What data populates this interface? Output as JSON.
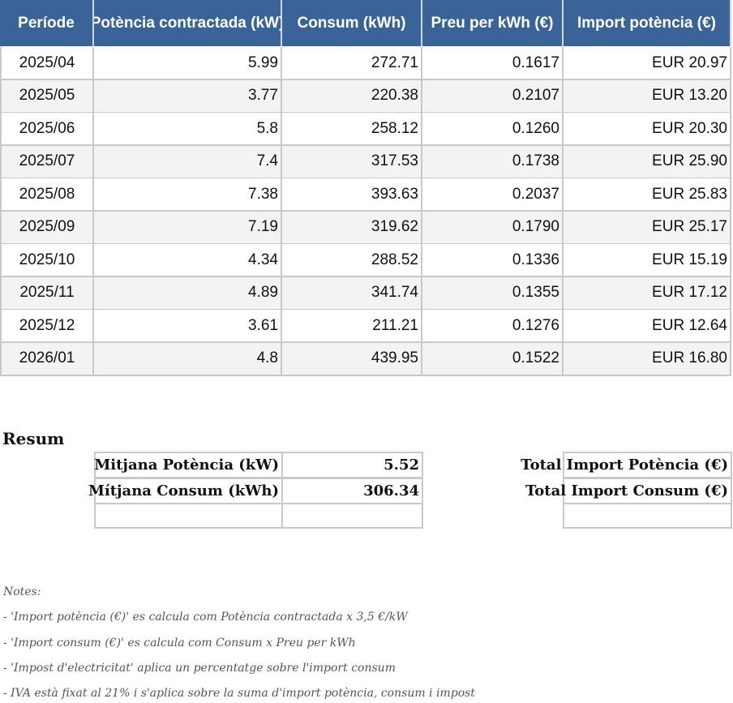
{
  "table": {
    "headers": [
      "Període",
      "Potència contractada (kW)",
      "Consum (kWh)",
      "Preu per kWh (€)",
      "Import potència (€)"
    ],
    "rows": [
      [
        "2025/04",
        "5.99",
        "272.71",
        "0.1617",
        "EUR 20.97"
      ],
      [
        "2025/05",
        "3.77",
        "220.38",
        "0.2107",
        "EUR 13.20"
      ],
      [
        "2025/06",
        "5.8",
        "258.12",
        "0.1260",
        "EUR 20.30"
      ],
      [
        "2025/07",
        "7.4",
        "317.53",
        "0.1738",
        "EUR 25.90"
      ],
      [
        "2025/08",
        "7.38",
        "393.63",
        "0.2037",
        "EUR 25.83"
      ],
      [
        "2025/09",
        "7.19",
        "319.62",
        "0.1790",
        "EUR 25.17"
      ],
      [
        "2025/10",
        "4.34",
        "288.52",
        "0.1336",
        "EUR 15.19"
      ],
      [
        "2025/11",
        "4.89",
        "341.74",
        "0.1355",
        "EUR 17.12"
      ],
      [
        "2025/12",
        "3.61",
        "211.21",
        "0.1276",
        "EUR 12.64"
      ],
      [
        "2026/01",
        "4.8",
        "439.95",
        "0.1522",
        "EUR 16.80"
      ]
    ]
  },
  "summary": {
    "title": "Resum",
    "items": [
      {
        "label": "Mitjana Potència (kW)",
        "value": "5.52"
      },
      {
        "label": "Mítjana Consum (kWh)",
        "value": "306.34"
      }
    ],
    "totals": [
      "Total Import Potència (€)",
      "Total Import Consum (€)"
    ]
  },
  "notes": [
    "Notes:",
    "- 'Import potència (€)' es calcula com Potència contractada x 3,5 €/kW",
    "- 'Import consum (€)' es calcula com Consum x Preu per kWh",
    "- 'Impost d'electricitat' aplica un percentatge sobre l'import consum",
    "- IVA està fixat al 21% i s'aplica sobre la suma d'import potència, consum i impost"
  ]
}
